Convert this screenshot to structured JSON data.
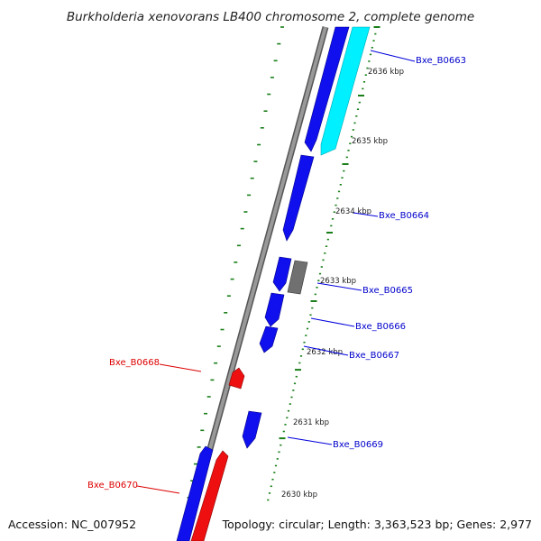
{
  "title": "Burkholderia xenovorans LB400 chromosome 2, complete genome",
  "accession_text": "Accession: NC_007952",
  "topology_text": "Topology: circular; Length: 3,363,523 bp; Genes: 2,977",
  "colors": {
    "forward_gene": "#0000ee",
    "highlight_gene": "#00ffff",
    "reverse_gene": "#ee0000",
    "pseudo_gene": "#777777",
    "backbone": "#888888",
    "tick": "#1a7f1a",
    "label_forward": "#0000cc",
    "label_reverse": "#dd0000"
  },
  "scale_ticks": [
    {
      "label": "2636 kbp"
    },
    {
      "label": "2635 kbp"
    },
    {
      "label": "2634 kbp"
    },
    {
      "label": "2633 kbp"
    },
    {
      "label": "2632 kbp"
    },
    {
      "label": "2631 kbp"
    },
    {
      "label": "2630 kbp"
    }
  ],
  "gene_labels": [
    {
      "name": "Bxe_B0663",
      "strand": "forward"
    },
    {
      "name": "Bxe_B0664",
      "strand": "forward"
    },
    {
      "name": "Bxe_B0665",
      "strand": "forward"
    },
    {
      "name": "Bxe_B0666",
      "strand": "forward"
    },
    {
      "name": "Bxe_B0667",
      "strand": "forward"
    },
    {
      "name": "Bxe_B0668",
      "strand": "reverse"
    },
    {
      "name": "Bxe_B0669",
      "strand": "forward"
    },
    {
      "name": "Bxe_B0670",
      "strand": "reverse"
    }
  ]
}
